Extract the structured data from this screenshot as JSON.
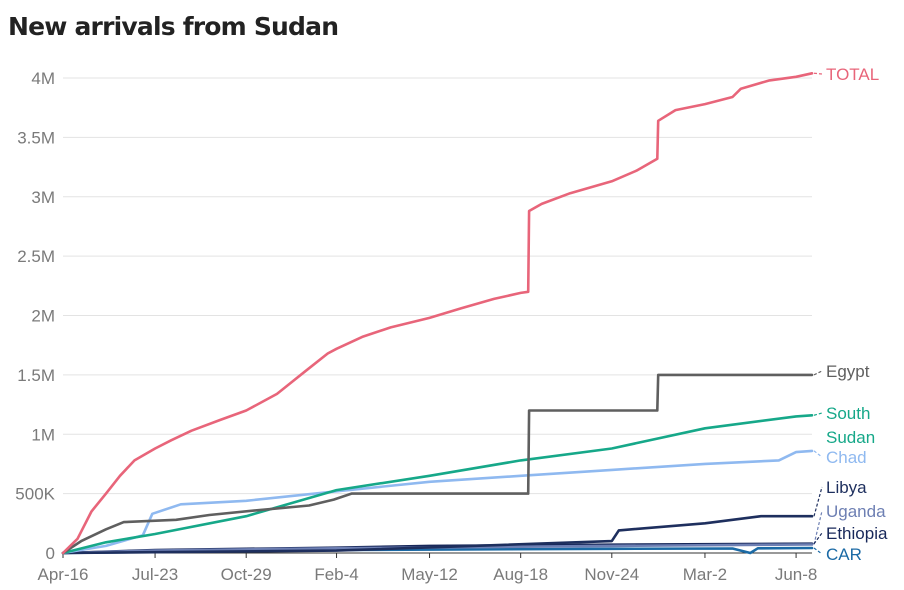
{
  "chart_data": {
    "type": "line",
    "title": "New arrivals from Sudan",
    "xlabel": "",
    "ylabel": "",
    "x_ticks": [
      "Apr-16",
      "Jul-23",
      "Oct-29",
      "Feb-4",
      "May-12",
      "Aug-18",
      "Nov-24",
      "Mar-2",
      "Jun-8"
    ],
    "y_ticks": [
      {
        "value": 0,
        "label": "0"
      },
      {
        "value": 500000,
        "label": "500K"
      },
      {
        "value": 1000000,
        "label": "1M"
      },
      {
        "value": 1500000,
        "label": "1.5M"
      },
      {
        "value": 2000000,
        "label": "2M"
      },
      {
        "value": 2500000,
        "label": "2.5M"
      },
      {
        "value": 3000000,
        "label": "3M"
      },
      {
        "value": 3500000,
        "label": "3.5M"
      },
      {
        "value": 4000000,
        "label": "4M"
      }
    ],
    "ylim": [
      0,
      4000000
    ],
    "grid": "horizontal",
    "legend": "labels at line ends (right)",
    "series": [
      {
        "label": "TOTAL",
        "color": "#e8657a",
        "points": [
          [
            "Apr-16",
            0
          ],
          [
            "May-1",
            120000
          ],
          [
            "May-16",
            350000
          ],
          [
            "Jun-1",
            500000
          ],
          [
            "Jun-16",
            650000
          ],
          [
            "Jul-1",
            780000
          ],
          [
            "Jul-23",
            880000
          ],
          [
            "Aug-10",
            950000
          ],
          [
            "Sep-1",
            1030000
          ],
          [
            "Oct-1",
            1120000
          ],
          [
            "Oct-29",
            1200000
          ],
          [
            "Dec-1",
            1340000
          ],
          [
            "Jan-1",
            1530000
          ],
          [
            "Jan-25",
            1680000
          ],
          [
            "Feb-4",
            1720000
          ],
          [
            "Mar-1",
            1820000
          ],
          [
            "Apr-1",
            1900000
          ],
          [
            "May-12",
            1980000
          ],
          [
            "Jun-15",
            2060000
          ],
          [
            "Jul-20",
            2140000
          ],
          [
            "Aug-18",
            2190000
          ],
          [
            "Aug-26",
            2200000
          ],
          [
            "Aug-27",
            2880000
          ],
          [
            "Sep-10",
            2940000
          ],
          [
            "Oct-10",
            3030000
          ],
          [
            "Nov-24",
            3130000
          ],
          [
            "Dec-20",
            3220000
          ],
          [
            "Jan-12",
            3320000
          ],
          [
            "Jan-13",
            3640000
          ],
          [
            "Feb-1",
            3730000
          ],
          [
            "Mar-2",
            3780000
          ],
          [
            "Apr-1",
            3840000
          ],
          [
            "Apr-10",
            3910000
          ],
          [
            "May-10",
            3980000
          ],
          [
            "Jun-8",
            4010000
          ],
          [
            "Jun-25",
            4040000
          ]
        ]
      },
      {
        "label": "Egypt",
        "color": "#5f5f5f",
        "points": [
          [
            "Apr-16",
            0
          ],
          [
            "May-5",
            100000
          ],
          [
            "Jun-1",
            200000
          ],
          [
            "Jun-20",
            260000
          ],
          [
            "Aug-15",
            280000
          ],
          [
            "Sep-20",
            320000
          ],
          [
            "Nov-10",
            360000
          ],
          [
            "Jan-5",
            400000
          ],
          [
            "Feb-1",
            450000
          ],
          [
            "Feb-20",
            500000
          ],
          [
            "Aug-26",
            500000
          ],
          [
            "Aug-27",
            1200000
          ],
          [
            "Jan-12",
            1200000
          ],
          [
            "Jan-13",
            1500000
          ],
          [
            "Jun-25",
            1500000
          ]
        ]
      },
      {
        "label": "South Sudan",
        "color": "#16a889",
        "points": [
          [
            "Apr-16",
            0
          ],
          [
            "Jun-1",
            90000
          ],
          [
            "Jul-23",
            160000
          ],
          [
            "Oct-29",
            310000
          ],
          [
            "Feb-4",
            530000
          ],
          [
            "May-12",
            650000
          ],
          [
            "Aug-18",
            780000
          ],
          [
            "Nov-24",
            880000
          ],
          [
            "Mar-2",
            1050000
          ],
          [
            "Jun-8",
            1150000
          ],
          [
            "Jun-25",
            1160000
          ]
        ]
      },
      {
        "label": "Chad",
        "color": "#8fb9f0",
        "points": [
          [
            "Apr-16",
            0
          ],
          [
            "Jun-1",
            60000
          ],
          [
            "Jul-10",
            150000
          ],
          [
            "Jul-20",
            330000
          ],
          [
            "Aug-20",
            410000
          ],
          [
            "Oct-29",
            440000
          ],
          [
            "Feb-4",
            520000
          ],
          [
            "May-12",
            600000
          ],
          [
            "Aug-18",
            650000
          ],
          [
            "Nov-24",
            700000
          ],
          [
            "Mar-2",
            750000
          ],
          [
            "May-20",
            780000
          ],
          [
            "Jun-8",
            850000
          ],
          [
            "Jun-25",
            860000
          ]
        ]
      },
      {
        "label": "Libya",
        "color": "#1e2f5e",
        "points": [
          [
            "Apr-16",
            0
          ],
          [
            "Feb-4",
            20000
          ],
          [
            "Nov-24",
            100000
          ],
          [
            "Dec-1",
            190000
          ],
          [
            "Mar-2",
            250000
          ],
          [
            "May-1",
            310000
          ],
          [
            "Jun-25",
            310000
          ]
        ]
      },
      {
        "label": "Uganda",
        "color": "#6d7fb3",
        "points": [
          [
            "Apr-16",
            0
          ],
          [
            "Jul-23",
            20000
          ],
          [
            "Feb-4",
            40000
          ],
          [
            "Nov-24",
            60000
          ],
          [
            "Jun-25",
            72000
          ]
        ]
      },
      {
        "label": "Ethiopia",
        "color": "#18285a",
        "points": [
          [
            "Apr-16",
            0
          ],
          [
            "Jul-23",
            25000
          ],
          [
            "Feb-4",
            45000
          ],
          [
            "May-12",
            60000
          ],
          [
            "Nov-24",
            70000
          ],
          [
            "Jun-25",
            78000
          ]
        ]
      },
      {
        "label": "CAR",
        "color": "#1b6aa5",
        "points": [
          [
            "Apr-16",
            0
          ],
          [
            "Jul-23",
            10000
          ],
          [
            "Feb-4",
            25000
          ],
          [
            "Nov-24",
            35000
          ],
          [
            "Apr-1",
            38000
          ],
          [
            "Apr-20",
            0
          ],
          [
            "Apr-28",
            40000
          ],
          [
            "Jun-25",
            42000
          ]
        ]
      }
    ]
  }
}
